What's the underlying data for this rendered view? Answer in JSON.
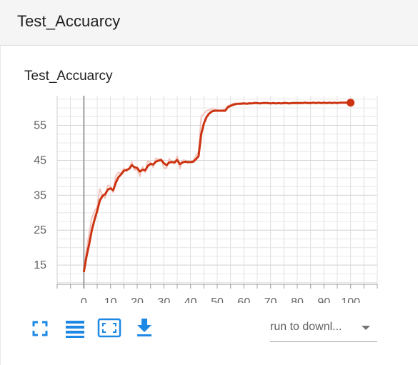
{
  "header": {
    "title": "Test_Accuarcy"
  },
  "card": {
    "title": "Test_Accuarcy"
  },
  "toolbar": {
    "fullscreen_icon": "fullscreen-icon",
    "data_table_icon": "list-icon",
    "fit_domain_icon": "fit-screen-icon",
    "download_icon": "download-icon",
    "accent_color": "#1e88e5"
  },
  "run_select": {
    "value": "run to downl..."
  },
  "chart_data": {
    "type": "line",
    "xlim": [
      -10,
      110
    ],
    "ylim": [
      9.5,
      63.5
    ],
    "xticks": [
      0,
      10,
      20,
      30,
      40,
      50,
      60,
      70,
      80,
      90,
      100
    ],
    "yticks": [
      15,
      25,
      35,
      45,
      55
    ],
    "grid": true,
    "smoothed_color": "#cc3311",
    "raw_color": "#f2c4bd",
    "series": [
      {
        "x": [
          0,
          1,
          2,
          3,
          4,
          5,
          6,
          7,
          8,
          9,
          10,
          11,
          12,
          13,
          14,
          15,
          16,
          17,
          18,
          19,
          20,
          21,
          22,
          23,
          24,
          25,
          26,
          27,
          28,
          29,
          30,
          31,
          32,
          33,
          34,
          35,
          36,
          37,
          38,
          39,
          40,
          41,
          42,
          43,
          44,
          45,
          46,
          47,
          48,
          49,
          50,
          51,
          52,
          53,
          54,
          55,
          56,
          57,
          58,
          59,
          60,
          61,
          62,
          63,
          64,
          65,
          66,
          67,
          68,
          69,
          70,
          71,
          72,
          73,
          74,
          75,
          76,
          77,
          78,
          79,
          80,
          81,
          82,
          83,
          84,
          85,
          86,
          87,
          88,
          89,
          90,
          91,
          92,
          93,
          94,
          95,
          96,
          97,
          98,
          99,
          100
        ],
        "smoothed": [
          13.0,
          17.5,
          21.0,
          25.0,
          28.0,
          30.5,
          33.5,
          34.8,
          35.3,
          36.6,
          37.0,
          36.4,
          38.6,
          40.2,
          41.0,
          42.0,
          42.2,
          42.6,
          43.6,
          43.0,
          42.8,
          41.8,
          42.3,
          42.1,
          43.4,
          44.0,
          43.8,
          44.6,
          44.9,
          45.1,
          44.2,
          43.6,
          44.4,
          44.5,
          44.4,
          45.1,
          43.9,
          44.4,
          44.6,
          44.5,
          44.5,
          44.6,
          45.3,
          46.2,
          52.5,
          55.5,
          57.4,
          58.4,
          59.0,
          59.2,
          59.2,
          59.2,
          59.2,
          59.2,
          60.2,
          60.6,
          60.9,
          61.1,
          61.2,
          61.2,
          61.3,
          61.2,
          61.3,
          61.3,
          61.4,
          61.4,
          61.3,
          61.4,
          61.4,
          61.4,
          61.3,
          61.4,
          61.3,
          61.4,
          61.3,
          61.4,
          61.4,
          61.3,
          61.4,
          61.4,
          61.4,
          61.4,
          61.4,
          61.5,
          61.4,
          61.4,
          61.5,
          61.4,
          61.5,
          61.4,
          61.5,
          61.4,
          61.5,
          61.4,
          61.5,
          61.4,
          61.5,
          61.5,
          61.5,
          61.5,
          61.5
        ],
        "raw": [
          13.0,
          19.5,
          24.0,
          28.5,
          30.5,
          31.5,
          36.8,
          35.0,
          34.2,
          37.8,
          37.6,
          35.8,
          40.6,
          41.6,
          41.2,
          42.8,
          41.8,
          42.6,
          44.6,
          42.2,
          42.4,
          40.4,
          43.2,
          41.6,
          44.8,
          44.4,
          43.0,
          45.6,
          45.2,
          45.4,
          42.8,
          42.8,
          45.4,
          44.6,
          44.0,
          46.2,
          42.6,
          45.0,
          45.0,
          44.2,
          44.6,
          44.8,
          46.4,
          47.4,
          57.5,
          58.3,
          59.2,
          59.4,
          59.8,
          59.6,
          59.4,
          59.2,
          59.4,
          59.6,
          60.6,
          60.9,
          61.3,
          61.4,
          61.3,
          61.4,
          61.4,
          61.2,
          61.5,
          61.3,
          61.6,
          61.5,
          61.2,
          61.5,
          61.5,
          61.5,
          61.2,
          61.6,
          61.2,
          61.5,
          61.2,
          61.6,
          61.5,
          61.2,
          61.5,
          61.5,
          61.5,
          61.5,
          61.5,
          61.7,
          61.3,
          61.4,
          61.7,
          61.3,
          61.7,
          61.3,
          61.7,
          61.3,
          61.7,
          61.3,
          61.6,
          61.4,
          61.6,
          61.5,
          61.5,
          61.5,
          61.5
        ]
      }
    ]
  }
}
